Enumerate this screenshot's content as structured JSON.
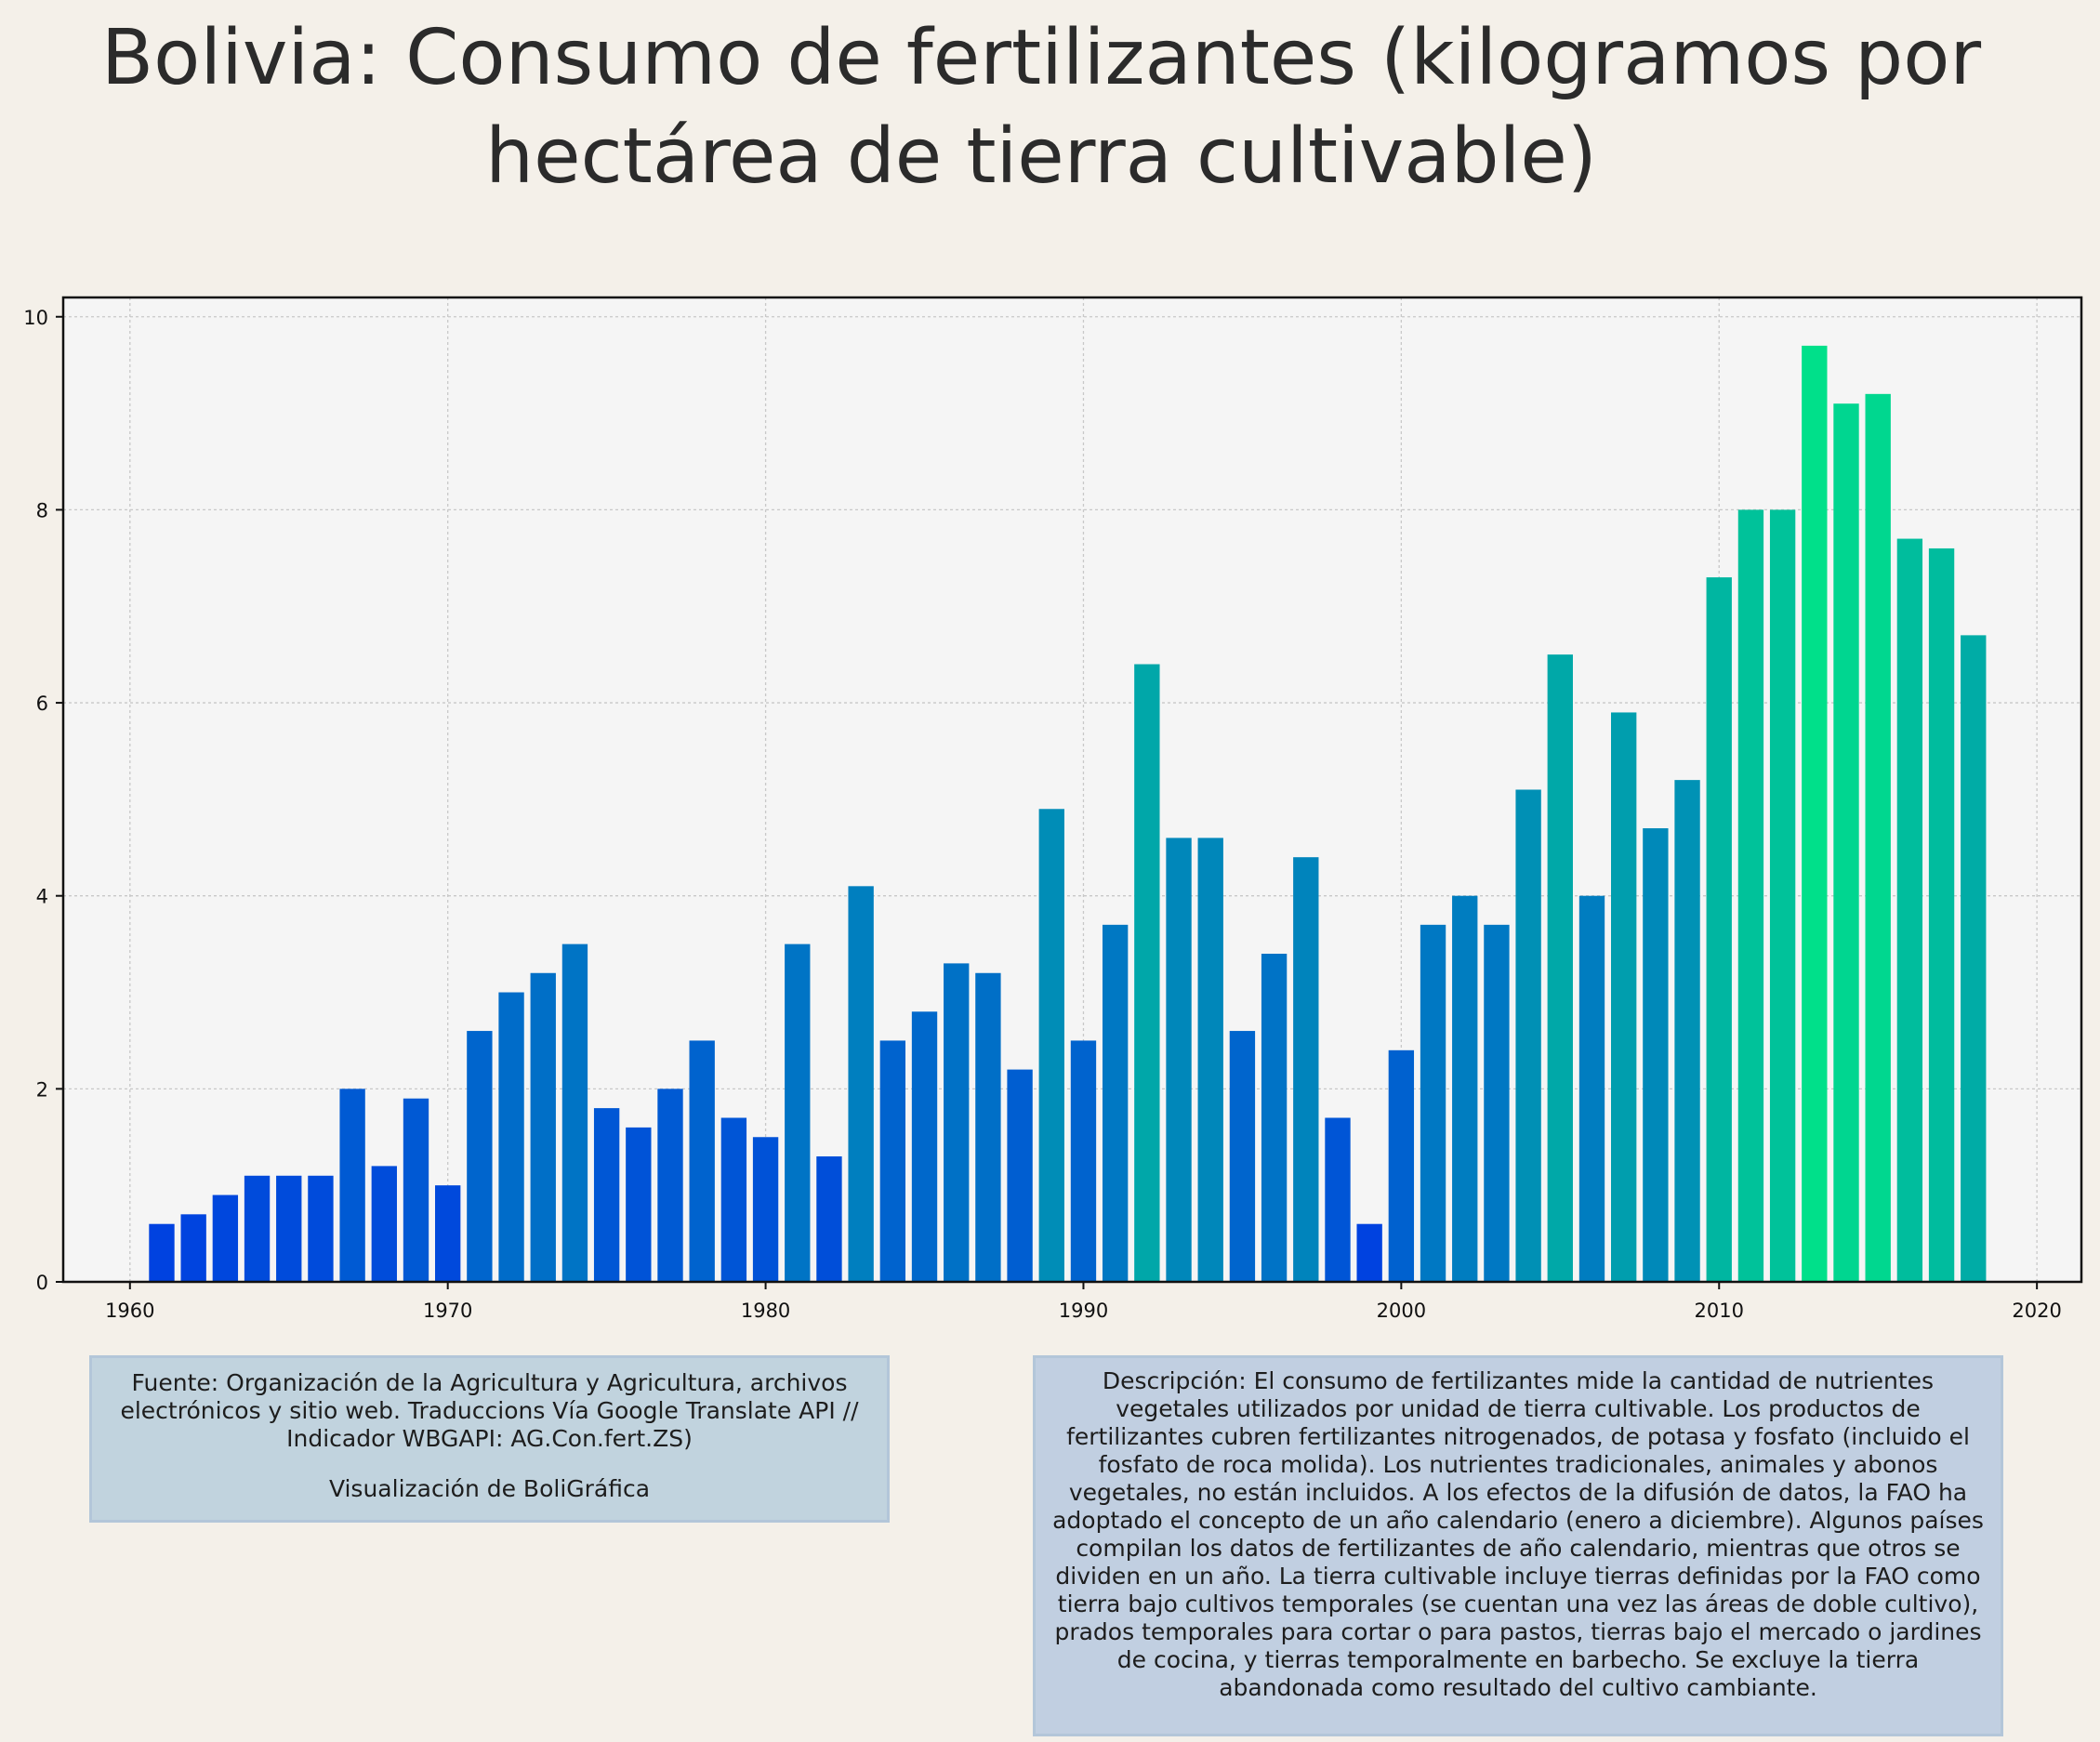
{
  "title": "Bolivia:  Consumo de fertilizantes (kilogramos por hectárea de tierra cultivable)",
  "source_text": "Fuente: Organización de la Agricultura y Agricultura, archivos electrónicos y sitio web. Traduccions Vía Google Translate API // Indicador WBGAPI: AG.Con.fert.ZS)",
  "source_credit": "Visualización de BoliGráfica",
  "description": "Descripción: El consumo de fertilizantes mide la cantidad de nutrientes vegetales utilizados por unidad de tierra cultivable. Los productos de fertilizantes cubren fertilizantes nitrogenados, de potasa y fosfato (incluido el fosfato de roca molida). Los nutrientes tradicionales, animales y abonos vegetales, no están incluidos. A los efectos de la difusión de datos, la FAO ha adoptado el concepto de un año calendario (enero a diciembre). Algunos países compilan los datos de fertilizantes de año calendario, mientras que otros se dividen en un año. La tierra cultivable incluye tierras definidas por la FAO como tierra bajo cultivos temporales (se cuentan una vez las áreas de doble cultivo), prados temporales para cortar o para pastos, tierras bajo el mercado o jardines de cocina, y tierras temporalmente en barbecho. Se excluye la tierra abandonada como resultado del cultivo cambiante.",
  "chart_data": {
    "type": "bar",
    "title": "Bolivia:  Consumo de fertilizantes (kilogramos por hectárea de tierra cultivable)",
    "xlabel": "",
    "ylabel": "",
    "xlim": [
      1957.9,
      2021.4
    ],
    "ylim": [
      0,
      10.2
    ],
    "xticks": [
      1960,
      1970,
      1980,
      1990,
      2000,
      2010,
      2020
    ],
    "yticks": [
      0,
      2,
      4,
      6,
      8,
      10
    ],
    "grid": true,
    "color_low": "#0042e0",
    "color_high": "#00e08a",
    "x": [
      1961,
      1962,
      1963,
      1964,
      1965,
      1966,
      1967,
      1968,
      1969,
      1970,
      1971,
      1972,
      1973,
      1974,
      1975,
      1976,
      1977,
      1978,
      1979,
      1980,
      1981,
      1982,
      1983,
      1984,
      1985,
      1986,
      1987,
      1988,
      1989,
      1990,
      1991,
      1992,
      1993,
      1994,
      1995,
      1996,
      1997,
      1998,
      1999,
      2000,
      2001,
      2002,
      2003,
      2004,
      2005,
      2006,
      2007,
      2008,
      2009,
      2010,
      2011,
      2012,
      2013,
      2014,
      2015,
      2016,
      2017,
      2018
    ],
    "values": [
      0.6,
      0.7,
      0.9,
      1.1,
      1.1,
      1.1,
      2.0,
      1.2,
      1.9,
      1.0,
      2.6,
      3.0,
      3.2,
      3.5,
      1.8,
      1.6,
      2.0,
      2.5,
      1.7,
      1.5,
      3.5,
      1.3,
      4.1,
      2.5,
      2.8,
      3.3,
      3.2,
      2.2,
      4.9,
      2.5,
      3.7,
      6.4,
      4.6,
      4.6,
      2.6,
      3.4,
      4.4,
      1.7,
      0.6,
      2.4,
      3.7,
      4.0,
      3.7,
      5.1,
      6.5,
      4.0,
      5.9,
      4.7,
      5.2,
      7.3,
      8.0,
      8.0,
      9.7,
      9.1,
      9.2,
      7.7,
      7.6,
      6.7
    ]
  }
}
